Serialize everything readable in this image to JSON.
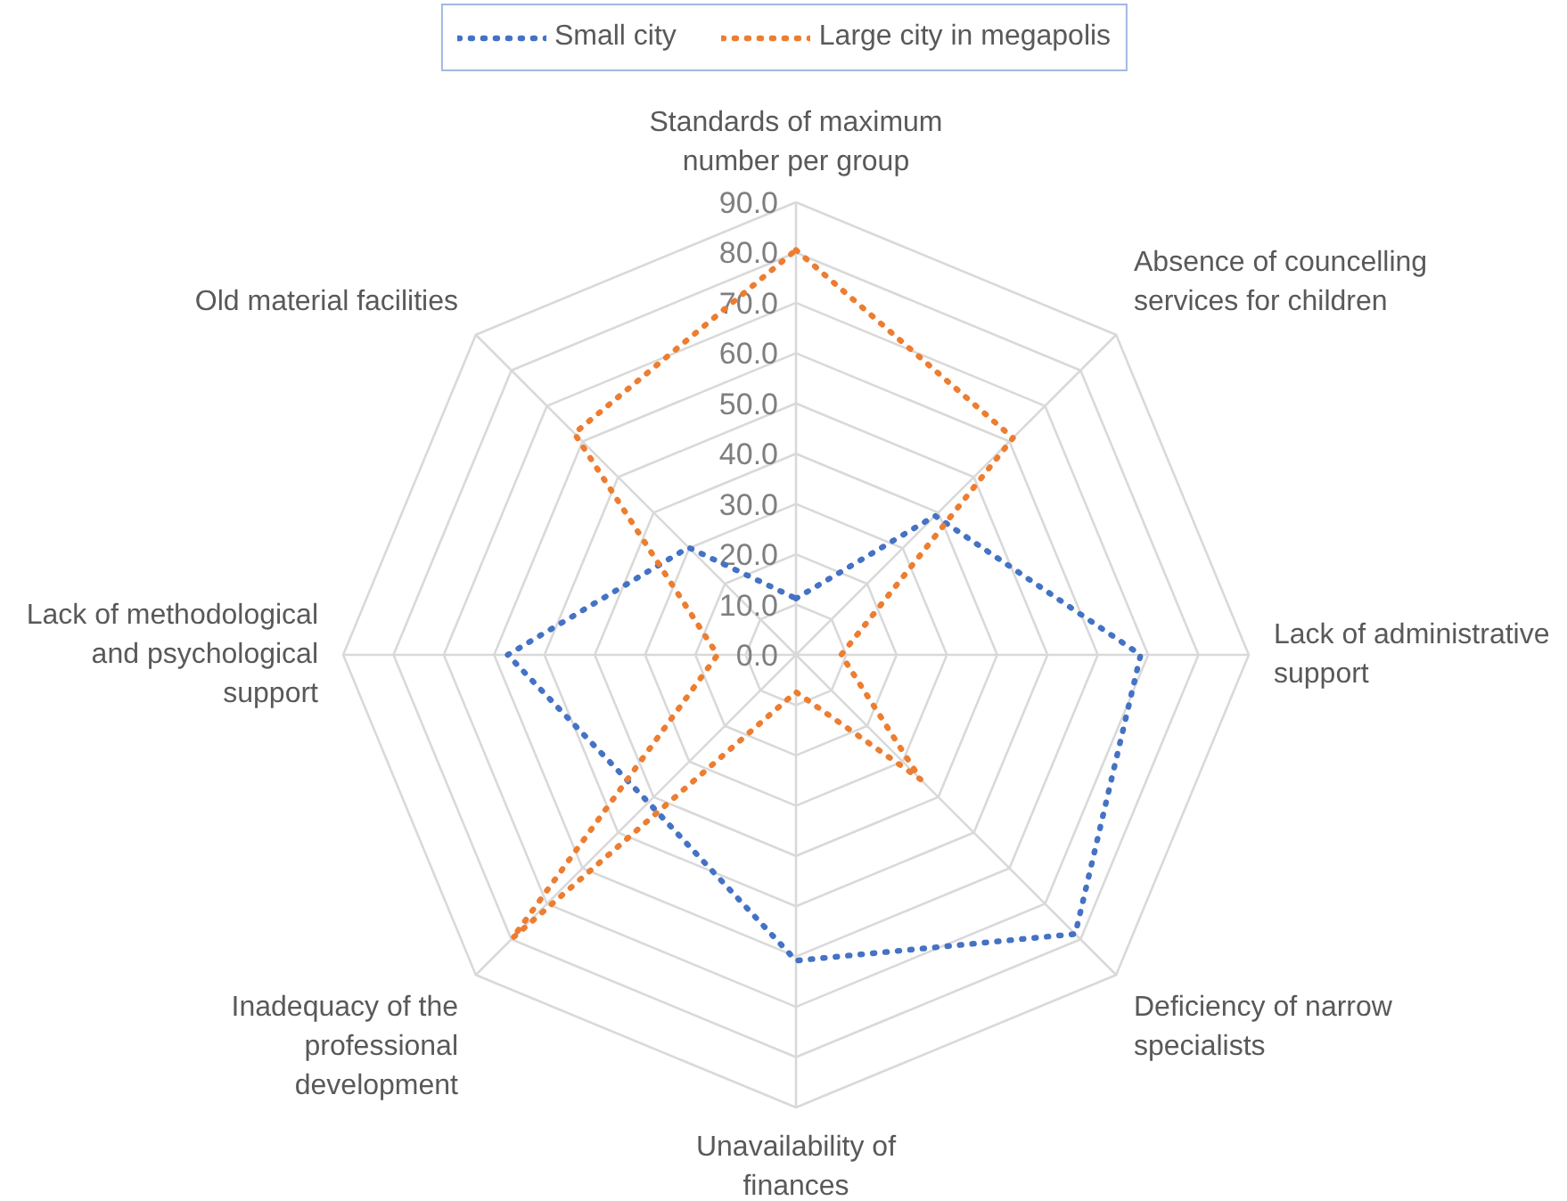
{
  "chart_data": {
    "type": "radar",
    "categories": [
      "Standards of maximum number per group",
      "Absence of councelling services for children",
      "Lack of administrative support",
      "Deficiency of narrow specialists",
      "Unavailability of finances",
      "Inadequacy of the professional development",
      "Lack of methodological and psychological support",
      "Old material facilities"
    ],
    "series": [
      {
        "name": "Small city",
        "color": "#4472c4",
        "values": [
          11.2,
          39.1,
          68.5,
          78.5,
          60.8,
          41.5,
          57.3,
          30.2
        ]
      },
      {
        "name": "Large city in megapolis",
        "color": "#ed7d31",
        "values": [
          80.5,
          61,
          9,
          35,
          7.4,
          79.7,
          15.6,
          62.3
        ]
      }
    ],
    "ylim": [
      0,
      90
    ],
    "yticks": [
      {
        "value": 0,
        "label": "0.0"
      },
      {
        "value": 10,
        "label": "10.0"
      },
      {
        "value": 20,
        "label": "20.0"
      },
      {
        "value": 30,
        "label": "30.0"
      },
      {
        "value": 40,
        "label": "40.0"
      },
      {
        "value": 50,
        "label": "50.0"
      },
      {
        "value": 60,
        "label": "60.0"
      },
      {
        "value": 70,
        "label": "70.0"
      },
      {
        "value": 80,
        "label": "80.0"
      },
      {
        "value": 90,
        "label": "90.0"
      }
    ],
    "grid": true,
    "legend": "top",
    "line_style": "dotted"
  }
}
